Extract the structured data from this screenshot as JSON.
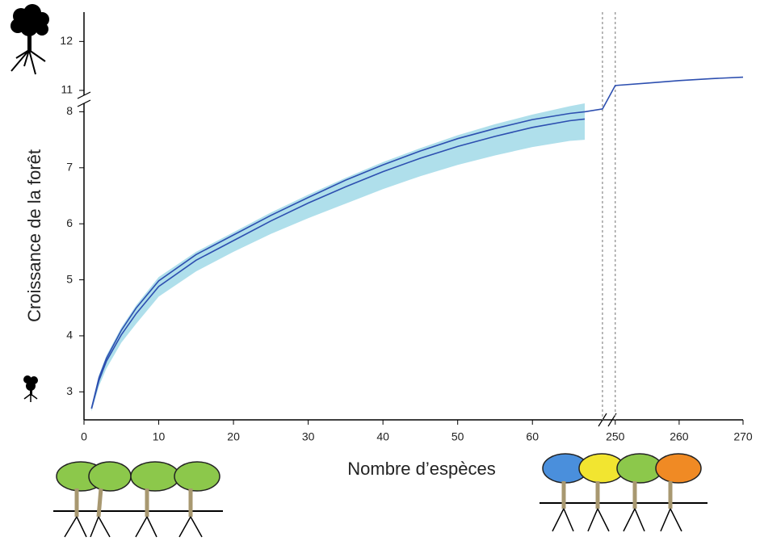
{
  "chart_data": {
    "type": "line",
    "xlabel": "Nombre d’espèces",
    "ylabel": "Croissance de la forêt",
    "xlim": [
      0,
      270
    ],
    "xbreak": [
      67,
      247.5
    ],
    "ylim": [
      2.5,
      12.6
    ],
    "ybreak": [
      8.15,
      10.9
    ],
    "xticks": [
      0,
      10,
      20,
      30,
      40,
      50,
      60,
      250,
      260,
      270
    ],
    "yticks": [
      3,
      4,
      5,
      6,
      7,
      8,
      11,
      12
    ],
    "vlines": [
      248,
      250
    ],
    "x": [
      1,
      2,
      3,
      5,
      7,
      10,
      15,
      20,
      25,
      30,
      35,
      40,
      45,
      50,
      55,
      60,
      65,
      67,
      248,
      250,
      255,
      260,
      265,
      270
    ],
    "series": [
      {
        "color": "#2d4fb0",
        "values": [
          2.7,
          3.25,
          3.6,
          4.1,
          4.5,
          4.98,
          5.45,
          5.8,
          6.15,
          6.47,
          6.78,
          7.05,
          7.3,
          7.52,
          7.7,
          7.86,
          7.97,
          8.0,
          8.05,
          11.1,
          11.15,
          11.2,
          11.24,
          11.27
        ]
      },
      {
        "color": "#2d4fb0",
        "values": [
          2.7,
          3.2,
          3.55,
          4.02,
          4.4,
          4.88,
          5.35,
          5.7,
          6.05,
          6.37,
          6.66,
          6.93,
          7.17,
          7.38,
          7.56,
          7.72,
          7.84,
          7.87,
          null,
          null,
          null,
          null,
          null,
          null
        ]
      }
    ],
    "band": {
      "color": "#a6dce9",
      "lower": [
        2.65,
        3.1,
        3.42,
        3.88,
        4.22,
        4.7,
        5.15,
        5.5,
        5.82,
        6.1,
        6.36,
        6.62,
        6.85,
        7.05,
        7.22,
        7.37,
        7.48,
        7.5,
        null,
        null,
        null,
        null,
        null,
        null
      ],
      "upper": [
        2.75,
        3.3,
        3.65,
        4.15,
        4.55,
        5.05,
        5.5,
        5.85,
        6.2,
        6.52,
        6.82,
        7.1,
        7.35,
        7.58,
        7.78,
        7.95,
        8.1,
        8.15,
        null,
        null,
        null,
        null,
        null,
        null
      ]
    }
  }
}
